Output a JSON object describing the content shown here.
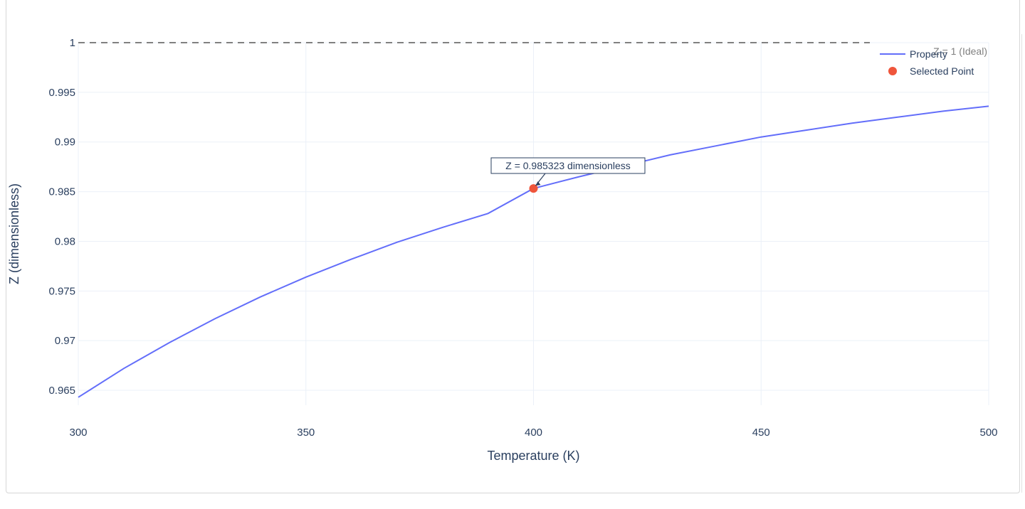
{
  "chart_data": {
    "type": "line",
    "title": "",
    "xlabel": "Temperature (K)",
    "ylabel": "Z (dimensionless)",
    "xlim": [
      300,
      500
    ],
    "ylim": [
      0.9635,
      1.0
    ],
    "x_ticks": [
      300,
      350,
      400,
      450,
      500
    ],
    "x_tick_labels": [
      "300",
      "350",
      "400",
      "450",
      "500"
    ],
    "y_ticks": [
      0.965,
      0.97,
      0.975,
      0.98,
      0.985,
      0.99,
      0.995,
      1
    ],
    "y_tick_labels": [
      "0.965",
      "0.97",
      "0.975",
      "0.98",
      "0.985",
      "0.99",
      "0.995",
      "1"
    ],
    "grid": true,
    "legend_position": "top-right",
    "series": [
      {
        "name": "Property",
        "color": "#636efa",
        "x": [
          300,
          310,
          320,
          330,
          340,
          350,
          360,
          370,
          380,
          390,
          400,
          410,
          420,
          430,
          440,
          450,
          460,
          470,
          480,
          490,
          500
        ],
        "y": [
          0.9643,
          0.9672,
          0.9698,
          0.9722,
          0.9744,
          0.9764,
          0.9782,
          0.9799,
          0.9814,
          0.9828,
          0.985323,
          0.9865,
          0.9876,
          0.9887,
          0.9896,
          0.9905,
          0.9912,
          0.9919,
          0.9925,
          0.9931,
          0.9936
        ]
      },
      {
        "name": "Selected Point",
        "color": "#ef553b",
        "x": [
          400
        ],
        "y": [
          0.985323
        ]
      }
    ],
    "reference_line": {
      "y": 1,
      "label": "Z = 1 (Ideal)",
      "color": "#808080"
    },
    "annotation": {
      "text": "Z = 0.985323 dimensionless",
      "x": 400,
      "y": 0.985323
    }
  }
}
